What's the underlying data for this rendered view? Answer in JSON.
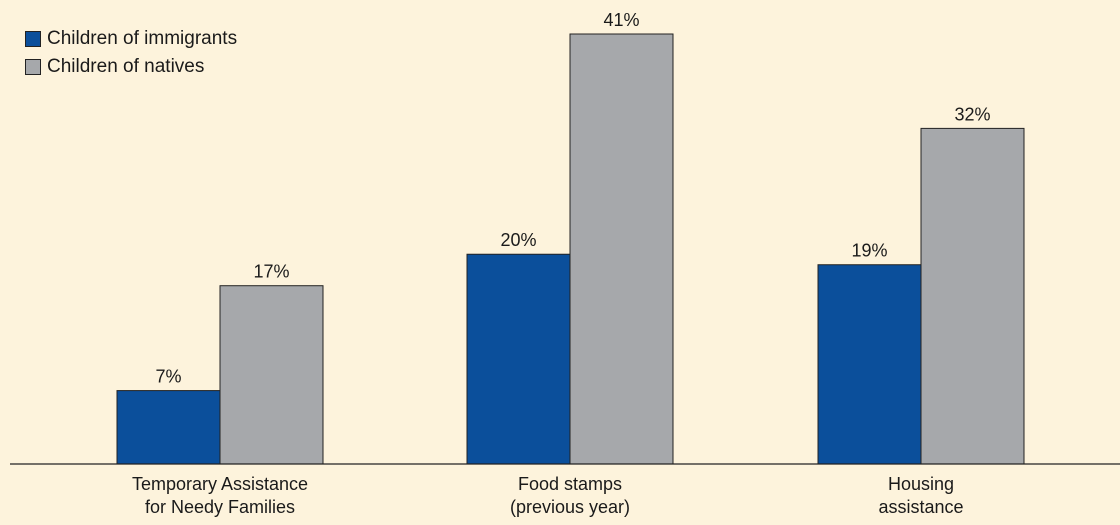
{
  "chart_data": {
    "type": "bar",
    "categories": [
      [
        "Temporary Assistance",
        "for Needy Families"
      ],
      [
        "Food stamps",
        "(previous year)"
      ],
      [
        "Housing",
        "assistance"
      ]
    ],
    "series": [
      {
        "name": "Children of immigrants",
        "values": [
          7,
          20,
          19
        ],
        "labels": [
          "7%",
          "20%",
          "19%"
        ],
        "color": "#0b4f9b"
      },
      {
        "name": "Children of natives",
        "values": [
          17,
          41,
          32
        ],
        "labels": [
          "17%",
          "41%",
          "32%"
        ],
        "color": "#a6a8ab"
      }
    ],
    "ylim": [
      0,
      41
    ],
    "legend_position": "top-left",
    "grid": false,
    "background": "#fdf3dc"
  }
}
